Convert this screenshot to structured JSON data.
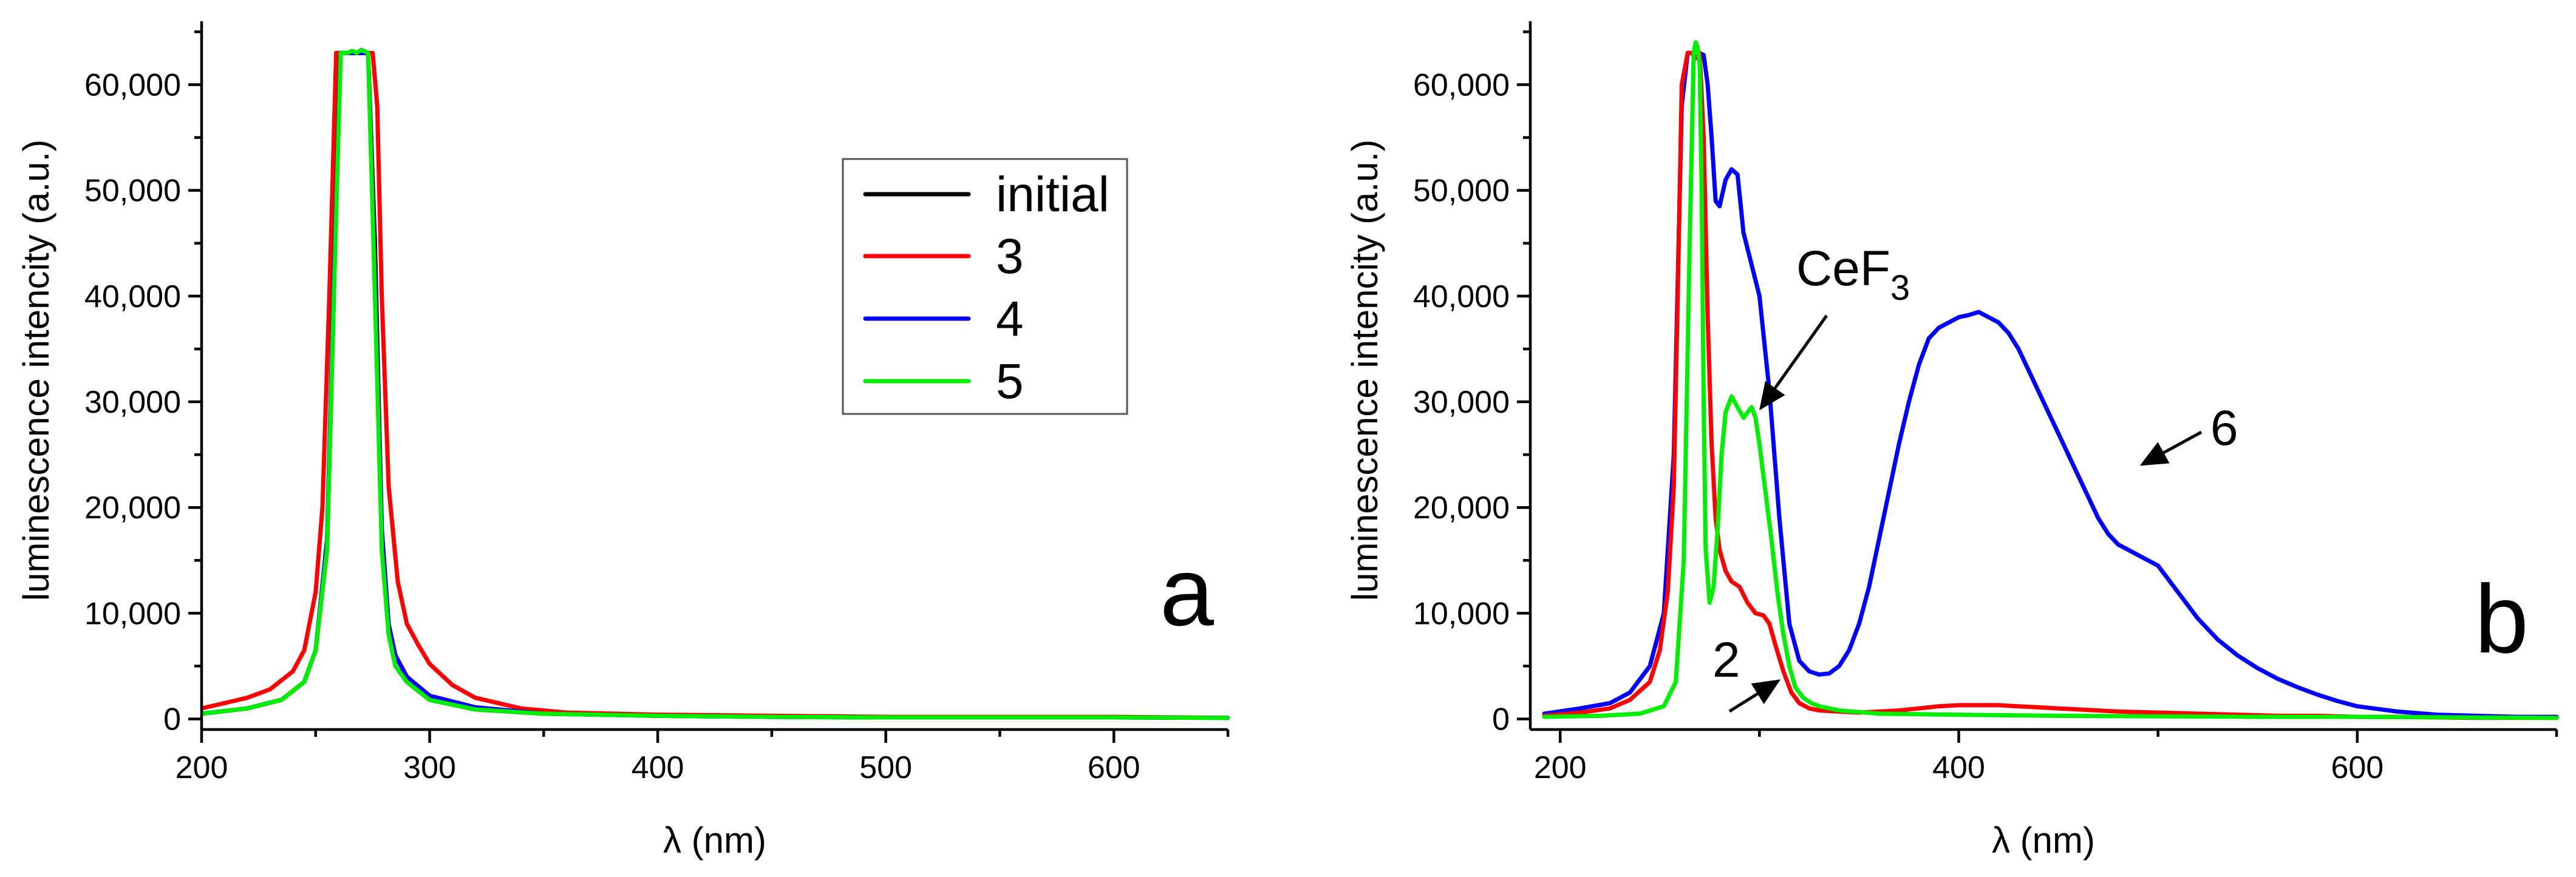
{
  "colors": {
    "initial": "#000000",
    "s3": "#ff0000",
    "s4": "#0000ff",
    "s5": "#00ee00"
  },
  "chart_data": [
    {
      "panel": "a",
      "type": "line",
      "xlabel": "λ (nm)",
      "ylabel": "luminescence intencity (a.u.)",
      "xlim": [
        200,
        650
      ],
      "ylim": [
        -1000,
        66000
      ],
      "xticks": [
        200,
        300,
        400,
        500,
        600
      ],
      "xtick_labels": [
        "200",
        "300",
        "400",
        "500",
        "600"
      ],
      "yticks": [
        0,
        10000,
        20000,
        30000,
        40000,
        50000,
        60000
      ],
      "ytick_labels": [
        "0",
        "10,000",
        "20,000",
        "30,000",
        "40,000",
        "50,000",
        "60,000"
      ],
      "legend": [
        "initial",
        "3",
        "4",
        "5"
      ],
      "legend_position": "top-right",
      "series": [
        {
          "name": "initial",
          "color": "#000000",
          "x": [
            200,
            220,
            235,
            245,
            250,
            255,
            258,
            260,
            262,
            265,
            270,
            273,
            276,
            279,
            282,
            285,
            290,
            300,
            320,
            350,
            400,
            450,
            500,
            550,
            600,
            650
          ],
          "y": [
            500,
            1000,
            1800,
            3500,
            6500,
            16000,
            40000,
            63000,
            63000,
            63000,
            63000,
            63000,
            45000,
            18000,
            8000,
            5000,
            3500,
            1800,
            900,
            500,
            300,
            200,
            150,
            150,
            150,
            100
          ]
        },
        {
          "name": "3",
          "color": "#ff0000",
          "x": [
            200,
            210,
            220,
            230,
            240,
            245,
            250,
            253,
            256,
            259,
            261,
            263,
            266,
            270,
            273,
            275,
            277,
            279,
            282,
            286,
            290,
            295,
            300,
            310,
            320,
            340,
            360,
            400,
            450,
            500,
            550,
            600,
            650
          ],
          "y": [
            1000,
            1500,
            2000,
            2800,
            4500,
            6500,
            12000,
            20000,
            40000,
            63000,
            63000,
            63000,
            63000,
            63000,
            63000,
            63000,
            58000,
            40000,
            22000,
            13000,
            9000,
            7000,
            5200,
            3200,
            2000,
            1000,
            600,
            400,
            300,
            200,
            200,
            200,
            100
          ]
        },
        {
          "name": "4",
          "color": "#0000ff",
          "x": [
            200,
            220,
            235,
            245,
            250,
            255,
            258,
            261,
            264,
            267,
            270,
            273,
            276,
            279,
            282,
            285,
            290,
            300,
            320,
            350,
            400,
            450,
            500,
            550,
            600,
            650
          ],
          "y": [
            500,
            1000,
            1800,
            3500,
            6500,
            17000,
            42000,
            63000,
            63000,
            63000,
            63000,
            63000,
            42000,
            18000,
            9000,
            6000,
            4000,
            2200,
            1100,
            500,
            300,
            200,
            150,
            150,
            150,
            100
          ]
        },
        {
          "name": "5",
          "color": "#00ee00",
          "x": [
            200,
            220,
            235,
            245,
            250,
            255,
            258,
            261,
            264,
            266,
            268,
            270,
            273,
            276,
            279,
            282,
            285,
            290,
            300,
            320,
            350,
            400,
            450,
            500,
            550,
            600,
            650
          ],
          "y": [
            500,
            1000,
            1800,
            3500,
            6500,
            16000,
            40000,
            63000,
            63000,
            63200,
            63000,
            63300,
            63000,
            40000,
            16000,
            8000,
            5000,
            3500,
            1800,
            900,
            500,
            300,
            200,
            150,
            150,
            150,
            100
          ]
        }
      ],
      "annotations": [
        {
          "text": "a"
        }
      ]
    },
    {
      "panel": "b",
      "type": "line",
      "xlabel": "λ (nm)",
      "ylabel": "luminescence intencity (a.u.)",
      "xlim": [
        185,
        700
      ],
      "ylim": [
        -1000,
        66000
      ],
      "xticks": [
        200,
        400,
        600
      ],
      "xtick_labels": [
        "200",
        "400",
        "600"
      ],
      "yticks": [
        0,
        10000,
        20000,
        30000,
        40000,
        50000,
        60000
      ],
      "ytick_labels": [
        "0",
        "10,000",
        "20,000",
        "30,000",
        "40,000",
        "50,000",
        "60,000"
      ],
      "series": [
        {
          "name": "6",
          "color": "#0000ff",
          "x": [
            192,
            210,
            225,
            235,
            245,
            252,
            257,
            261,
            264,
            266,
            268,
            270,
            272,
            274,
            276,
            278,
            280,
            283,
            286,
            289,
            292,
            296,
            300,
            305,
            310,
            315,
            320,
            325,
            330,
            335,
            340,
            345,
            350,
            355,
            360,
            365,
            370,
            375,
            380,
            385,
            390,
            395,
            400,
            405,
            410,
            415,
            420,
            425,
            430,
            435,
            440,
            445,
            450,
            455,
            460,
            465,
            470,
            475,
            480,
            485,
            490,
            495,
            500,
            510,
            520,
            530,
            540,
            550,
            560,
            570,
            580,
            590,
            600,
            620,
            640,
            660,
            680,
            700
          ],
          "y": [
            500,
            1000,
            1500,
            2500,
            5000,
            10000,
            25000,
            58000,
            63000,
            63000,
            62500,
            63000,
            62800,
            60000,
            55000,
            49000,
            48500,
            51000,
            52000,
            51500,
            46000,
            43000,
            40000,
            31000,
            19000,
            9000,
            5500,
            4500,
            4200,
            4300,
            5000,
            6500,
            9000,
            12500,
            17000,
            21500,
            26000,
            30000,
            33500,
            36000,
            37000,
            37500,
            38000,
            38200,
            38500,
            38000,
            37500,
            36500,
            35000,
            33000,
            31000,
            29000,
            27000,
            25000,
            23000,
            21000,
            19000,
            17500,
            16500,
            16000,
            15500,
            15000,
            14500,
            12000,
            9500,
            7500,
            6000,
            4800,
            3800,
            3000,
            2300,
            1700,
            1200,
            700,
            400,
            300,
            200,
            200
          ]
        },
        {
          "name": "2",
          "color": "#ff0000",
          "x": [
            192,
            210,
            225,
            235,
            245,
            250,
            254,
            257,
            259,
            261,
            264,
            266,
            268,
            270,
            272,
            274,
            276,
            278,
            280,
            283,
            286,
            290,
            294,
            298,
            302,
            305,
            308,
            312,
            316,
            320,
            325,
            330,
            340,
            350,
            360,
            370,
            380,
            390,
            400,
            410,
            420,
            430,
            440,
            450,
            460,
            470,
            480,
            500,
            520,
            540,
            560,
            580,
            600,
            620,
            640,
            660,
            680,
            700
          ],
          "y": [
            300,
            600,
            1000,
            1800,
            3500,
            6500,
            12000,
            22000,
            40000,
            60000,
            63000,
            63000,
            62500,
            63000,
            55000,
            38000,
            26000,
            19000,
            16000,
            14000,
            13000,
            12500,
            11000,
            10000,
            9800,
            9000,
            7000,
            4500,
            2500,
            1500,
            1000,
            800,
            700,
            600,
            700,
            800,
            1000,
            1200,
            1300,
            1300,
            1300,
            1200,
            1100,
            1000,
            900,
            800,
            700,
            600,
            500,
            400,
            300,
            300,
            200,
            200,
            150,
            100,
            100,
            100
          ]
        },
        {
          "name": "CeF3",
          "color": "#00ee00",
          "x": [
            192,
            220,
            240,
            252,
            258,
            262,
            265,
            267,
            268,
            269,
            270,
            271,
            272,
            273,
            275,
            277,
            279,
            281,
            283,
            286,
            289,
            292,
            294,
            296,
            298,
            300,
            302,
            304,
            306,
            309,
            312,
            315,
            318,
            322,
            326,
            330,
            340,
            360,
            400,
            450,
            500,
            550,
            600,
            650,
            700
          ],
          "y": [
            200,
            300,
            500,
            1200,
            3500,
            15000,
            45000,
            63000,
            64000,
            63500,
            62000,
            50000,
            30000,
            16000,
            11000,
            12500,
            18000,
            25000,
            29000,
            30500,
            29500,
            28500,
            29000,
            29500,
            28500,
            26000,
            23000,
            20000,
            17000,
            12000,
            8000,
            5000,
            3000,
            2000,
            1500,
            1200,
            800,
            500,
            400,
            300,
            250,
            200,
            200,
            150,
            100
          ]
        }
      ],
      "annotations": [
        {
          "text": "6"
        },
        {
          "text": "CeF3"
        },
        {
          "text": "2"
        },
        {
          "text": "b"
        }
      ]
    }
  ],
  "panel_a": {
    "xlabel": "λ (nm)",
    "ylabel": "luminescence intencity (a.u.)",
    "letter": "a",
    "legend": {
      "initial": "initial",
      "s3": "3",
      "s4": "4",
      "s5": "5"
    }
  },
  "panel_b": {
    "xlabel": "λ (nm)",
    "ylabel": "luminescence intencity (a.u.)",
    "letter": "b",
    "label_6": "6",
    "label_cef": "CeF",
    "label_cef_sub": "3",
    "label_2": "2"
  }
}
